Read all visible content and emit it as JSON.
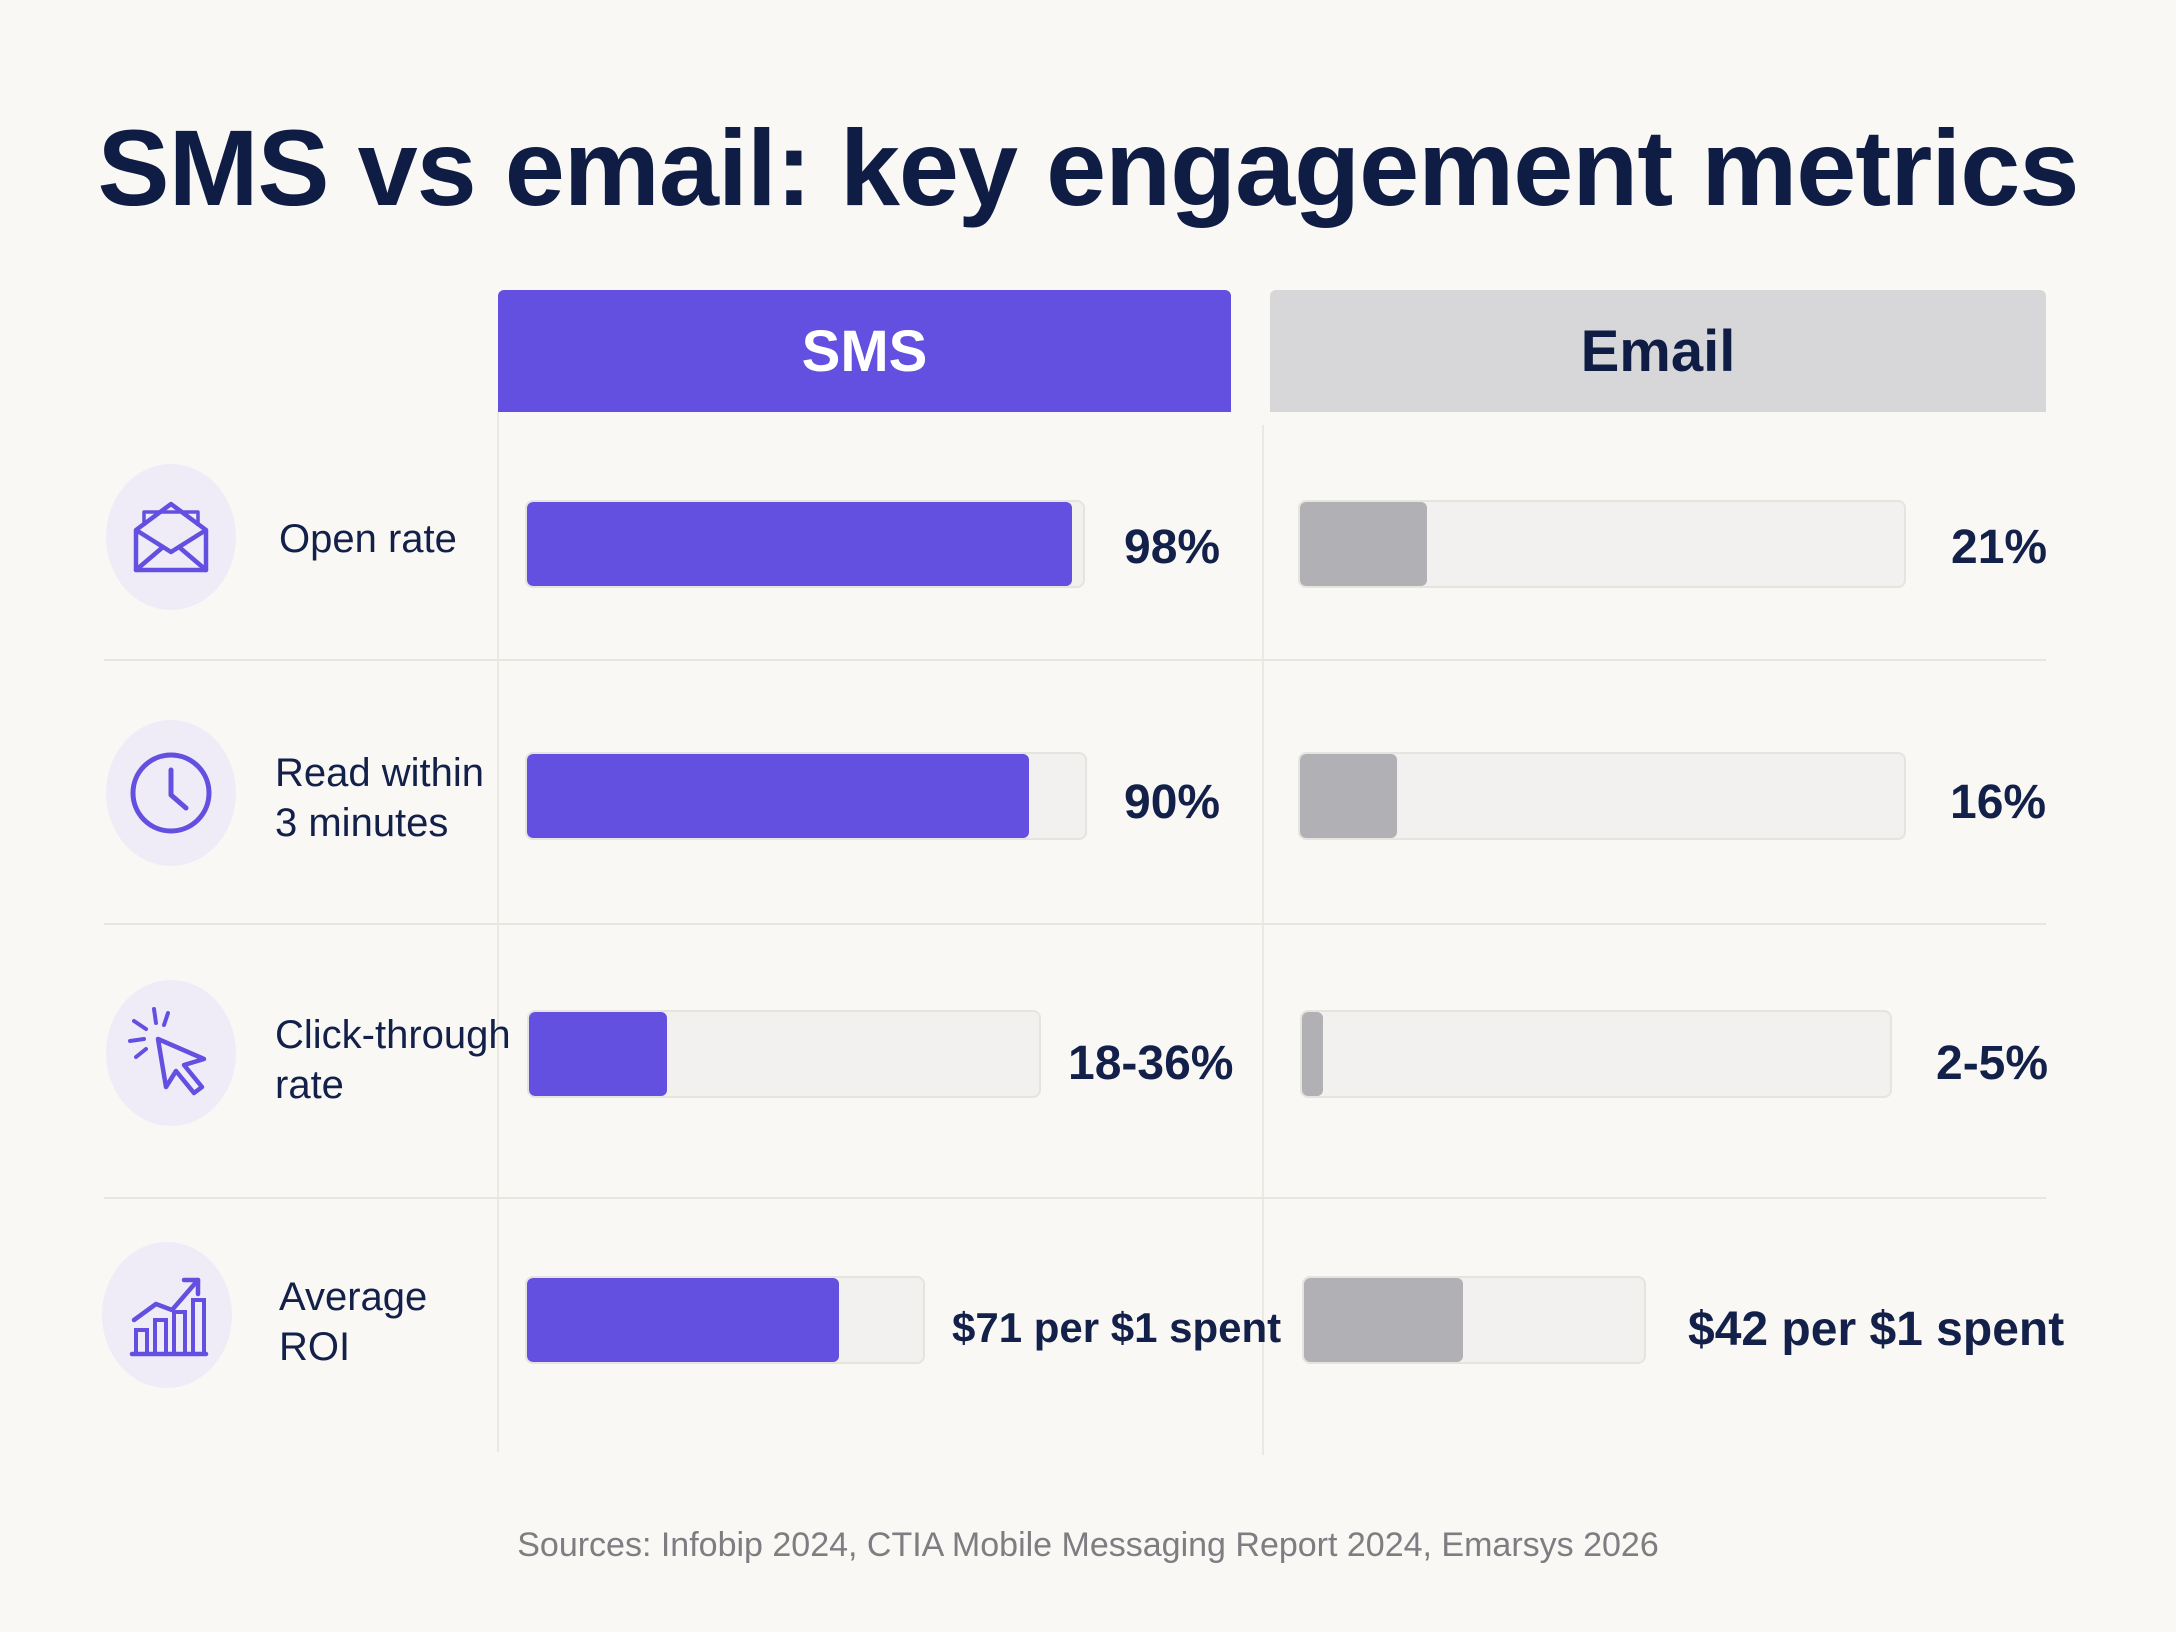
{
  "title": "SMS vs email: key engagement metrics",
  "columns": {
    "sms": "SMS",
    "email": "Email"
  },
  "rows": [
    {
      "label": "Open rate",
      "icon": "envelope-icon",
      "sms_value": "98%",
      "email_value": "21%"
    },
    {
      "label": "Read within\n3 minutes",
      "icon": "clock-icon",
      "sms_value": "90%",
      "email_value": "16%"
    },
    {
      "label": "Click-through\nrate",
      "icon": "cursor-click-icon",
      "sms_value": "18-36%",
      "email_value": "2-5%"
    },
    {
      "label": "Average\nROI",
      "icon": "growth-chart-icon",
      "sms_value": "$71 per $1 spent",
      "email_value": "$42 per $1 spent"
    }
  ],
  "source": "Sources: Infobip 2024, CTIA Mobile Messaging Report 2024, Emarsys 2026",
  "colors": {
    "sms": "#634fe0",
    "email": "#b1b0b5",
    "title": "#0f1d45",
    "background": "#f9f8f4"
  },
  "chart_data": {
    "type": "bar",
    "title": "SMS vs email: key engagement metrics",
    "categories": [
      "Open rate",
      "Read within 3 minutes",
      "Click-through rate",
      "Average ROI"
    ],
    "series": [
      {
        "name": "SMS",
        "values": [
          98,
          90,
          27,
          71
        ],
        "labels": [
          "98%",
          "90%",
          "18-36%",
          "$71 per $1 spent"
        ]
      },
      {
        "name": "Email",
        "values": [
          21,
          16,
          3.5,
          42
        ],
        "labels": [
          "21%",
          "16%",
          "2-5%",
          "$42 per $1 spent"
        ]
      }
    ],
    "units": [
      "%",
      "%",
      "%",
      "$ per $1 spent"
    ],
    "orientation": "horizontal",
    "grid": false
  }
}
